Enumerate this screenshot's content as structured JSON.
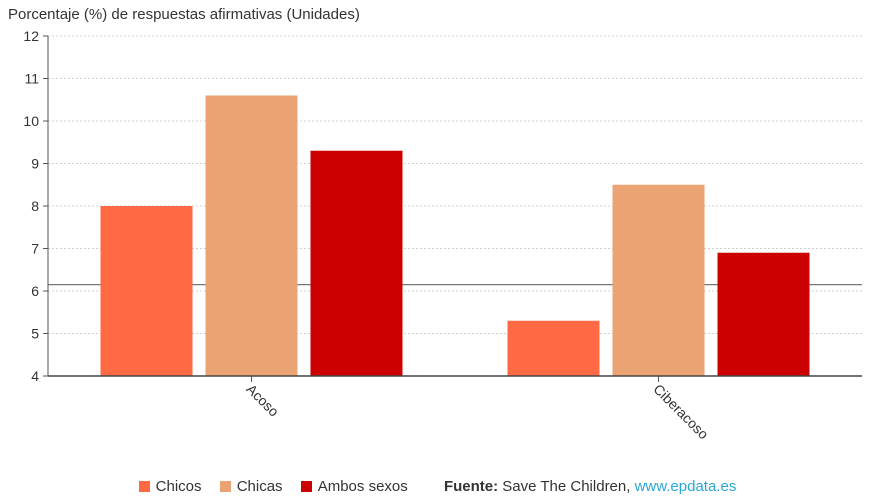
{
  "chart_data": {
    "type": "bar",
    "ylabel": "Porcentaje (%) de respuestas afirmativas (Unidades)",
    "categories": [
      "Acoso",
      "Ciberacoso"
    ],
    "series": [
      {
        "name": "Chicos",
        "values": [
          8.0,
          5.3
        ],
        "color": "#ff6a45"
      },
      {
        "name": "Chicas",
        "values": [
          10.6,
          8.5
        ],
        "color": "#eba373"
      },
      {
        "name": "Ambos sexos",
        "values": [
          9.3,
          6.9
        ],
        "color": "#cc0000"
      }
    ],
    "ylim": [
      4,
      12
    ],
    "yticks": [
      "4",
      "5",
      "6",
      "7",
      "8",
      "9",
      "10",
      "11",
      "12"
    ],
    "reference_line": 6.15,
    "grid": true,
    "legend_position": "bottom"
  },
  "source": {
    "label": "Fuente:",
    "text": "Save The Children,",
    "link": "www.epdata.es"
  }
}
